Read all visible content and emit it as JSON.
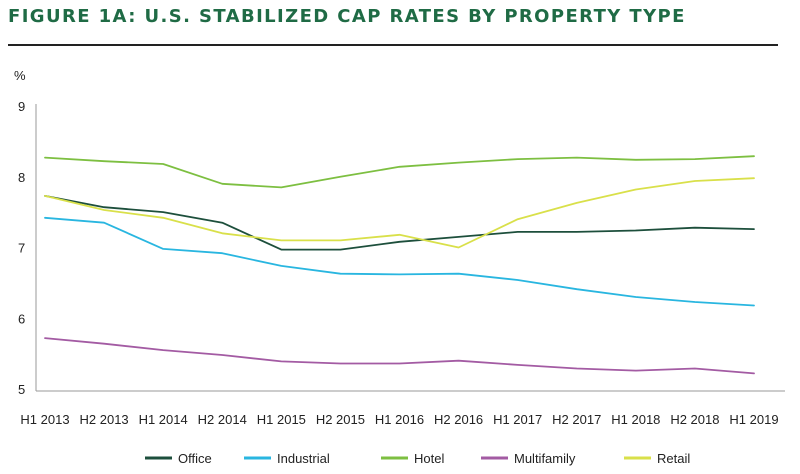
{
  "chart_data": {
    "type": "line",
    "title": "FIGURE 1A: U.S. STABILIZED CAP RATES BY PROPERTY TYPE",
    "ylabel": "%",
    "xlabel": "",
    "ylim": [
      5,
      9
    ],
    "yticks": [
      5,
      6,
      7,
      8,
      9
    ],
    "categories": [
      "H1 2013",
      "H2 2013",
      "H1 2014",
      "H2 2014",
      "H1 2015",
      "H2 2015",
      "H1 2016",
      "H2 2016",
      "H1 2017",
      "H2 2017",
      "H1 2018",
      "H2 2018",
      "H1 2019"
    ],
    "grid": false,
    "legend_position": "bottom",
    "series": [
      {
        "name": "Office",
        "color": "#1d4f3c",
        "values": [
          7.73,
          7.57,
          7.5,
          7.35,
          6.97,
          6.97,
          7.08,
          7.15,
          7.22,
          7.22,
          7.24,
          7.28,
          7.26
        ]
      },
      {
        "name": "Industrial",
        "color": "#29b6e0",
        "values": [
          7.42,
          7.35,
          6.98,
          6.92,
          6.74,
          6.63,
          6.62,
          6.63,
          6.54,
          6.41,
          6.3,
          6.23,
          6.18
        ]
      },
      {
        "name": "Hotel",
        "color": "#7dbf41",
        "values": [
          8.27,
          8.22,
          8.18,
          7.9,
          7.85,
          8.0,
          8.14,
          8.2,
          8.25,
          8.27,
          8.24,
          8.25,
          8.29
        ]
      },
      {
        "name": "Multifamily",
        "color": "#a35ba3",
        "values": [
          5.72,
          5.64,
          5.55,
          5.48,
          5.39,
          5.36,
          5.36,
          5.4,
          5.34,
          5.29,
          5.26,
          5.29,
          5.22
        ]
      },
      {
        "name": "Retail",
        "color": "#d9e04a",
        "values": [
          7.73,
          7.53,
          7.42,
          7.2,
          7.1,
          7.1,
          7.18,
          7.0,
          7.4,
          7.63,
          7.82,
          7.94,
          7.98
        ]
      }
    ]
  }
}
